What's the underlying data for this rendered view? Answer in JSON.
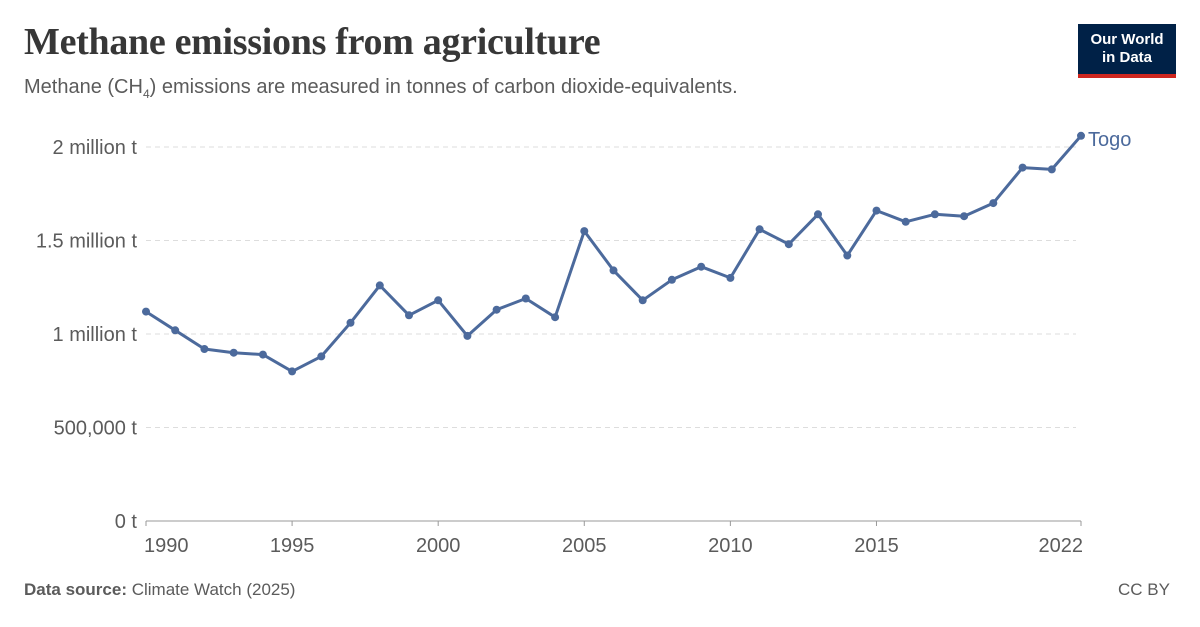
{
  "header": {
    "title": "Methane emissions from agriculture",
    "subtitle_pre": "Methane (CH",
    "subtitle_sub": "4",
    "subtitle_post": ") emissions are measured in tonnes of carbon dioxide-equivalents."
  },
  "logo": {
    "line1": "Our World",
    "line2": "in Data"
  },
  "footer": {
    "source_label": "Data source:",
    "source_value": " Climate Watch (2025)",
    "license": "CC BY"
  },
  "colors": {
    "series": "#4c6a9c",
    "grid": "#dddddd",
    "axis": "#999999",
    "text": "#5b5b5b"
  },
  "chart_data": {
    "type": "line",
    "title": "Methane emissions from agriculture",
    "xlabel": "",
    "ylabel": "",
    "xlim": [
      1990,
      2022
    ],
    "ylim": [
      0,
      2000000
    ],
    "grid": "horizontal dashed",
    "legend": "inline label at line end",
    "x_ticks": [
      {
        "value": 1990,
        "label": "1990"
      },
      {
        "value": 1995,
        "label": "1995"
      },
      {
        "value": 2000,
        "label": "2000"
      },
      {
        "value": 2005,
        "label": "2005"
      },
      {
        "value": 2010,
        "label": "2010"
      },
      {
        "value": 2015,
        "label": "2015"
      },
      {
        "value": 2022,
        "label": "2022"
      }
    ],
    "y_ticks": [
      {
        "value": 0,
        "label": "0 t"
      },
      {
        "value": 500000,
        "label": "500,000 t"
      },
      {
        "value": 1000000,
        "label": "1 million t"
      },
      {
        "value": 1500000,
        "label": "1.5 million t"
      },
      {
        "value": 2000000,
        "label": "2 million t"
      }
    ],
    "series": [
      {
        "name": "Togo",
        "x": [
          1990,
          1991,
          1992,
          1993,
          1994,
          1995,
          1996,
          1997,
          1998,
          1999,
          2000,
          2001,
          2002,
          2003,
          2004,
          2005,
          2006,
          2007,
          2008,
          2009,
          2010,
          2011,
          2012,
          2013,
          2014,
          2015,
          2016,
          2017,
          2018,
          2019,
          2020,
          2021,
          2022
        ],
        "values": [
          1120000,
          1020000,
          920000,
          900000,
          890000,
          800000,
          880000,
          1060000,
          1260000,
          1100000,
          1180000,
          990000,
          1130000,
          1190000,
          1090000,
          1550000,
          1340000,
          1180000,
          1290000,
          1360000,
          1300000,
          1560000,
          1480000,
          1640000,
          1420000,
          1660000,
          1600000,
          1640000,
          1630000,
          1700000,
          1890000,
          1880000,
          2060000
        ]
      }
    ]
  }
}
